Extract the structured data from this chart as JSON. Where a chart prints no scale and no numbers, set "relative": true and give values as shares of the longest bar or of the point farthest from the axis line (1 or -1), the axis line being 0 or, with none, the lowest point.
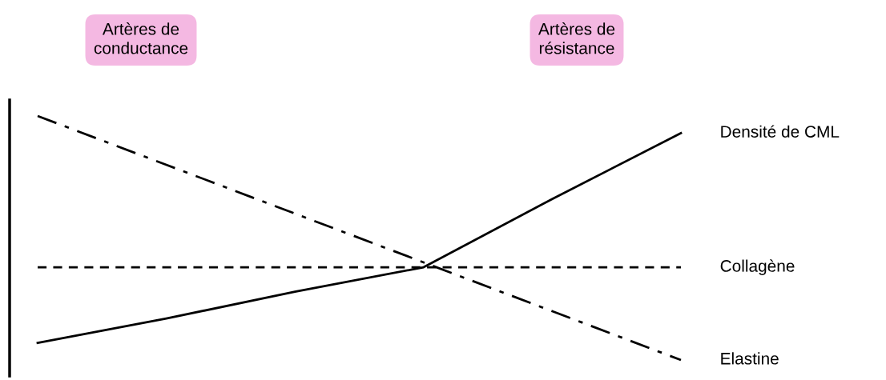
{
  "chart_data": {
    "type": "line",
    "relative": true,
    "categories": [
      null,
      null,
      null,
      null,
      null,
      null
    ],
    "legend": false,
    "marker": "none",
    "annotations": [
      "Artères de\nconductance",
      "Artères de\nrésistance"
    ],
    "series": [
      {
        "name": "Densité de CML",
        "color": "#000000",
        "line_style": "solid",
        "values": [
          0.07,
          0.17,
          0.28,
          0.38,
          0.66,
          0.93
        ]
      },
      {
        "name": "Collagène",
        "color": "#000000",
        "line_style": "dashed",
        "values": [
          0.38,
          0.38,
          0.38,
          0.38,
          0.38,
          0.38
        ]
      },
      {
        "name": "Elastine",
        "color": "#000000",
        "line_style": "dashdot",
        "values": [
          1.0,
          0.8,
          0.6,
          0.4,
          0.2,
          0.0
        ]
      }
    ]
  }
}
